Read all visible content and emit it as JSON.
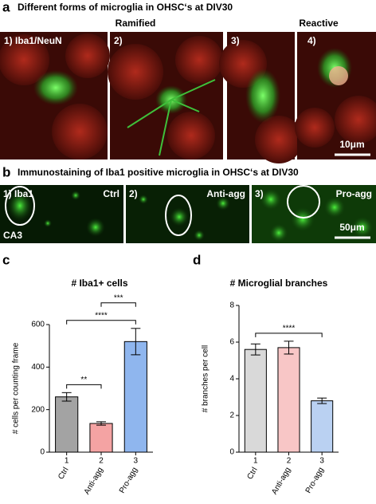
{
  "figure": {
    "panel_a": {
      "letter": "a",
      "title": "Different forms of microglia in OHSC‘s at DIV30",
      "groups": [
        "Ramified",
        "Reactive"
      ],
      "image_labels": [
        "1) Iba1/NeuN",
        "2)",
        "3)",
        "4)"
      ],
      "scale_bar": "10μm"
    },
    "panel_b": {
      "letter": "b",
      "title": "Immunostaining of Iba1 positive microglia in OHSC‘s at DIV30",
      "image_labels": [
        "1) Iba1",
        "2)",
        "3)"
      ],
      "conditions": [
        "Ctrl",
        "Anti-agg",
        "Pro-agg"
      ],
      "region": "CA3",
      "scale_bar": "50μm"
    }
  },
  "chart_data": [
    {
      "type": "bar",
      "letter": "c",
      "title": "# Iba1+ cells",
      "y_label": "# cells per counting frame",
      "category_numbers": [
        "1",
        "2",
        "3"
      ],
      "categories": [
        "Ctrl",
        "Anti-agg",
        "Pro-agg"
      ],
      "values": [
        260,
        135,
        520
      ],
      "errors": [
        20,
        8,
        62
      ],
      "colors": [
        "#a3a3a3",
        "#f4a3a3",
        "#8fb6ee"
      ],
      "ylim": [
        0,
        600
      ],
      "yticks": [
        0,
        200,
        400,
        600
      ],
      "significance": [
        {
          "from": 0,
          "to": 1,
          "label": "**"
        },
        {
          "from": 0,
          "to": 2,
          "label": "****"
        },
        {
          "from": 1,
          "to": 2,
          "label": "***"
        }
      ]
    },
    {
      "type": "bar",
      "letter": "d",
      "title": "# Microglial branches",
      "y_label": "# branches per cell",
      "category_numbers": [
        "1",
        "2",
        "3"
      ],
      "categories": [
        "Ctrl",
        "Anti-agg",
        "Pro-agg"
      ],
      "values": [
        5.6,
        5.7,
        2.8
      ],
      "errors": [
        0.3,
        0.35,
        0.15
      ],
      "colors": [
        "#d9d9d9",
        "#f8c6c6",
        "#bad1f2"
      ],
      "ylim": [
        0,
        8
      ],
      "yticks": [
        0,
        2,
        4,
        6,
        8
      ],
      "significance": [
        {
          "from": 0,
          "to": 2,
          "label": "****"
        }
      ]
    }
  ]
}
